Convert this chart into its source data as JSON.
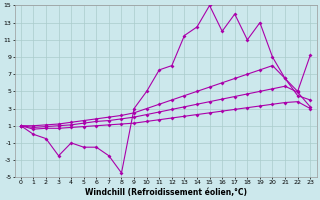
{
  "x": [
    0,
    1,
    2,
    3,
    4,
    5,
    6,
    7,
    8,
    9,
    10,
    11,
    12,
    13,
    14,
    15,
    16,
    17,
    18,
    19,
    20,
    21,
    22,
    23
  ],
  "y_jagged": [
    1,
    0,
    -0.5,
    -2.5,
    -1,
    -1.5,
    -1.5,
    -2.5,
    -4.5,
    3,
    5,
    7.5,
    8,
    11.5,
    12.5,
    15,
    12,
    14,
    11,
    13,
    9,
    6.5,
    4.5,
    4
  ],
  "y_upper": [
    1,
    1,
    1.1,
    1.2,
    1.4,
    1.6,
    1.8,
    2.0,
    2.2,
    2.5,
    3.0,
    3.5,
    4.0,
    4.5,
    5.0,
    5.5,
    6.0,
    6.5,
    7.0,
    7.5,
    8.0,
    6.5,
    5.0,
    9.2
  ],
  "y_mid": [
    1,
    0.8,
    0.9,
    1.0,
    1.1,
    1.3,
    1.5,
    1.6,
    1.8,
    2.0,
    2.3,
    2.6,
    2.9,
    3.2,
    3.5,
    3.8,
    4.1,
    4.4,
    4.7,
    5.0,
    5.3,
    5.6,
    4.9,
    3.2
  ],
  "y_lower": [
    1,
    0.6,
    0.7,
    0.7,
    0.8,
    0.9,
    1.0,
    1.1,
    1.2,
    1.3,
    1.5,
    1.7,
    1.9,
    2.1,
    2.3,
    2.5,
    2.7,
    2.9,
    3.1,
    3.3,
    3.5,
    3.7,
    3.8,
    3.0
  ],
  "color": "#aa00aa",
  "bg_color": "#cce8ec",
  "grid_color": "#aacccc",
  "xlabel": "Windchill (Refroidissement éolien,°C)",
  "xlim": [
    -0.5,
    23.5
  ],
  "ylim": [
    -5,
    15
  ],
  "yticks": [
    -5,
    -3,
    -1,
    1,
    3,
    5,
    7,
    9,
    11,
    13,
    15
  ],
  "xticks": [
    0,
    1,
    2,
    3,
    4,
    5,
    6,
    7,
    8,
    9,
    10,
    11,
    12,
    13,
    14,
    15,
    16,
    17,
    18,
    19,
    20,
    21,
    22,
    23
  ]
}
